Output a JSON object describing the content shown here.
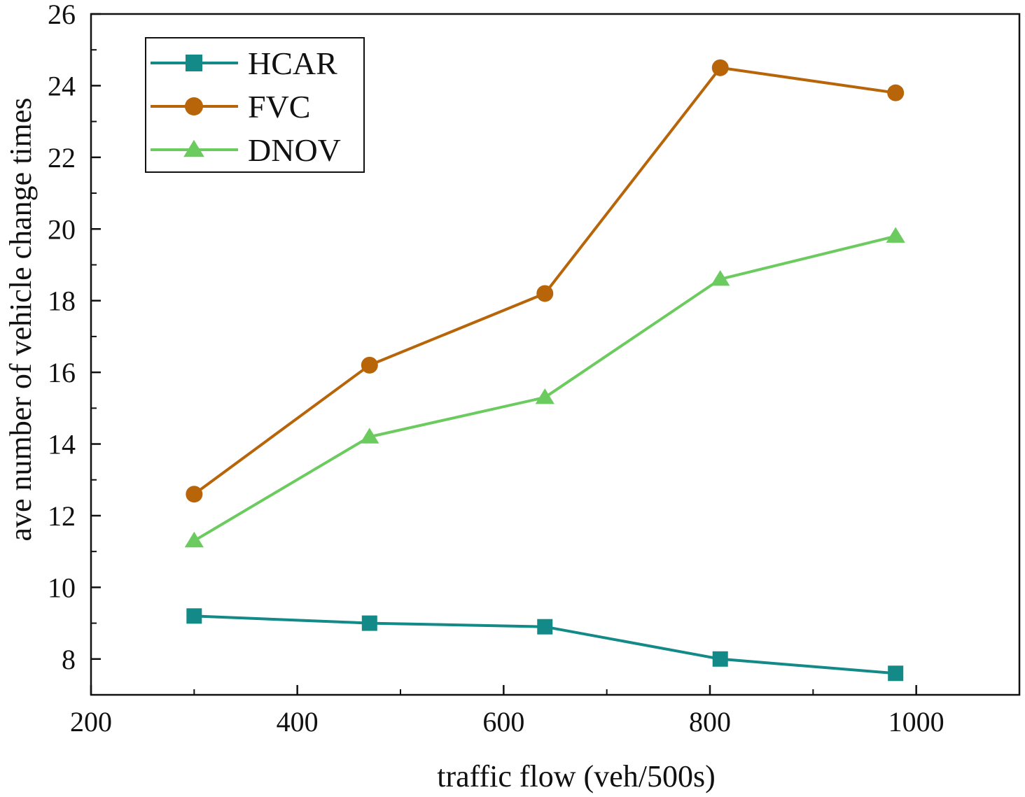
{
  "chart_data": {
    "type": "line",
    "title": "",
    "xlabel": "traffic flow (veh/500s)",
    "ylabel": "ave number of vehicle change times",
    "xlim": [
      200,
      1100
    ],
    "ylim": [
      7,
      26
    ],
    "xticks": [
      200,
      400,
      600,
      800,
      1000
    ],
    "yticks": [
      8,
      10,
      12,
      14,
      16,
      18,
      20,
      22,
      24,
      26
    ],
    "grid": false,
    "legend_position": "top-left",
    "x": [
      300,
      470,
      640,
      810,
      980
    ],
    "series": [
      {
        "name": "HCAR",
        "marker": "square",
        "color": "#138a87",
        "values": [
          9.2,
          9.0,
          8.9,
          8.0,
          7.6
        ]
      },
      {
        "name": "FVC",
        "marker": "circle",
        "color": "#b8650a",
        "values": [
          12.6,
          16.2,
          18.2,
          24.5,
          23.8
        ]
      },
      {
        "name": "DNOV",
        "marker": "triangle",
        "color": "#6ccb5f",
        "values": [
          11.3,
          14.2,
          15.3,
          18.6,
          19.8
        ]
      }
    ]
  }
}
